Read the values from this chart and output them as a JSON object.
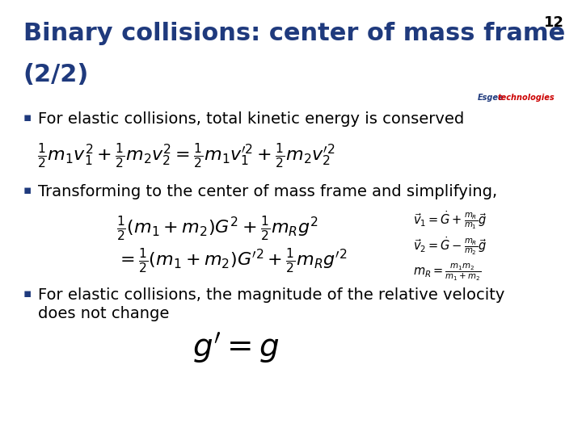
{
  "title_line1": "Binary collisions: center of mass frame",
  "title_line2": "(2/2)",
  "title_color": "#1F3A7D",
  "slide_number": "12",
  "background_color": "#ffffff",
  "header_bar_color": "#1F3A7D",
  "header_bar_small_color": "#1F3A7D",
  "bullet_color": "#1F3A7D",
  "text_color": "#000000",
  "bullet1": "For elastic collisions, total kinetic energy is conserved",
  "bullet2": "Transforming to the center of mass frame and simplifying,",
  "bullet3_line1": "For elastic collisions, the magnitude of the relative velocity",
  "bullet3_line2": "does not change",
  "font_size_title": 22,
  "font_size_bullet": 14,
  "font_size_formula": 16,
  "brand_color_black": "#1F3A7D",
  "brand_color_red": "#cc0000"
}
